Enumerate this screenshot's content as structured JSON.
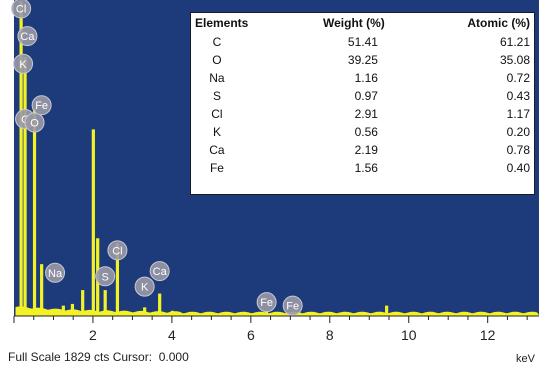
{
  "chart_data": {
    "type": "line",
    "xlabel": "keV",
    "xlim": [
      0,
      13.3
    ],
    "ylim": [
      0,
      1829
    ],
    "x_ticks": [
      2,
      4,
      6,
      8,
      10,
      12
    ],
    "grid": false,
    "colors": {
      "background": "#1d3a7a",
      "spectrum": "#f2f226",
      "marker": "#9a9aa6",
      "marker_text": "#ffffff"
    },
    "peaks": [
      {
        "label": "Cl",
        "energy": 0.18,
        "counts": 1780
      },
      {
        "label": "Ca",
        "energy": 0.34,
        "counts": 1620
      },
      {
        "label": "K",
        "energy": 0.23,
        "counts": 1460
      },
      {
        "label": "C",
        "energy": 0.28,
        "counts": 1140
      },
      {
        "label": "O",
        "energy": 0.52,
        "counts": 1120
      },
      {
        "label": "Fe",
        "energy": 0.7,
        "counts": 1220
      },
      {
        "label": "Na",
        "energy": 1.04,
        "counts": 250
      },
      {
        "label": "S",
        "energy": 2.31,
        "counts": 230
      },
      {
        "label": "Cl",
        "energy": 2.62,
        "counts": 380
      },
      {
        "label": "K",
        "energy": 3.31,
        "counts": 170
      },
      {
        "label": "Ca",
        "energy": 3.69,
        "counts": 260
      },
      {
        "label": "Fe",
        "energy": 6.4,
        "counts": 80
      },
      {
        "label": "Fe",
        "energy": 7.06,
        "counts": 60
      }
    ],
    "lines": [
      {
        "energy": 0.18,
        "counts": 1820
      },
      {
        "energy": 0.28,
        "counts": 1500
      },
      {
        "energy": 0.52,
        "counts": 1200
      },
      {
        "energy": 0.7,
        "counts": 300
      },
      {
        "energy": 1.04,
        "counts": 40
      },
      {
        "energy": 1.25,
        "counts": 60
      },
      {
        "energy": 1.48,
        "counts": 70
      },
      {
        "energy": 1.74,
        "counts": 150
      },
      {
        "energy": 2.01,
        "counts": 1080
      },
      {
        "energy": 2.12,
        "counts": 450
      },
      {
        "energy": 2.31,
        "counts": 150
      },
      {
        "energy": 2.62,
        "counts": 420
      },
      {
        "energy": 3.31,
        "counts": 50
      },
      {
        "energy": 3.69,
        "counts": 130
      },
      {
        "energy": 4.01,
        "counts": 30
      },
      {
        "energy": 6.4,
        "counts": 30
      },
      {
        "energy": 7.06,
        "counts": 15
      },
      {
        "energy": 9.44,
        "counts": 60
      }
    ],
    "table": {
      "headers": [
        "Elements",
        "Weight (%)",
        "Atomic (%)"
      ],
      "rows": [
        [
          "C",
          "51.41",
          "61.21"
        ],
        [
          "O",
          "39.25",
          "35.08"
        ],
        [
          "Na",
          "1.16",
          "0.72"
        ],
        [
          "S",
          "0.97",
          "0.43"
        ],
        [
          "Cl",
          "2.91",
          "1.17"
        ],
        [
          "K",
          "0.56",
          "0.20"
        ],
        [
          "Ca",
          "2.19",
          "0.78"
        ],
        [
          "Fe",
          "1.56",
          "0.40"
        ]
      ]
    }
  },
  "footer": {
    "status": "Full Scale 1829 cts Cursor:  0.000",
    "unit": "keV"
  }
}
